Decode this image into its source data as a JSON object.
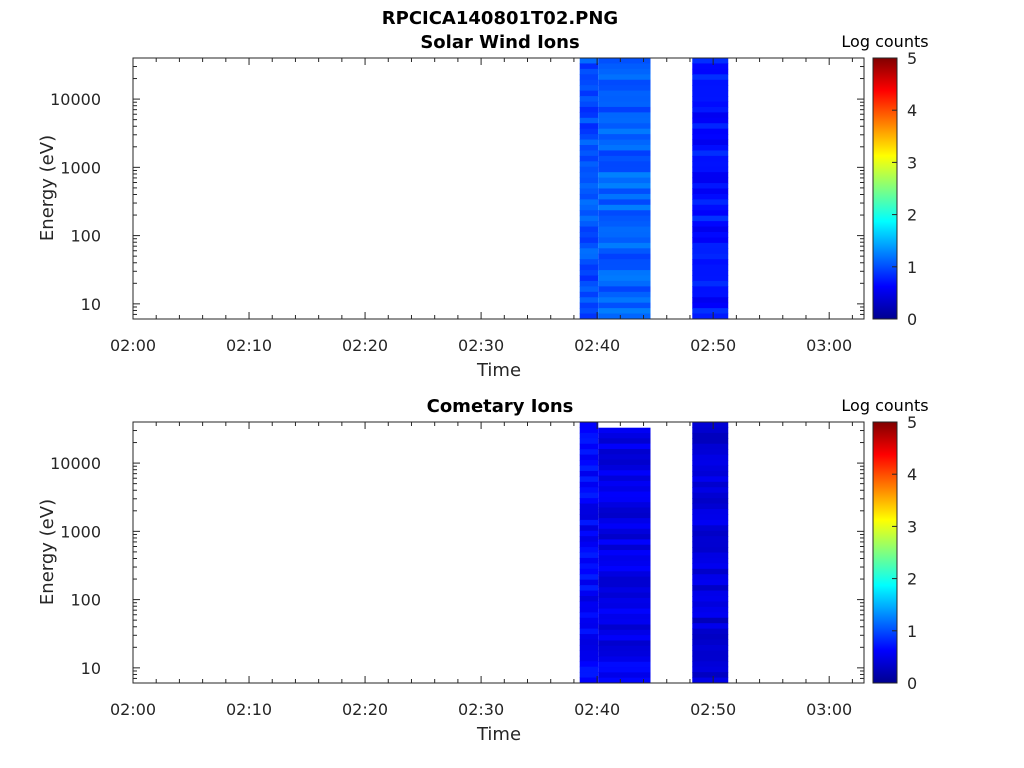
{
  "figure": {
    "title": "RPCICA140801T02.PNG"
  },
  "chart_data": [
    {
      "type": "heatmap",
      "title": "Solar Wind Ions",
      "xlabel": "Time",
      "ylabel": "Energy (eV)",
      "x_ticks": [
        "02:00",
        "02:10",
        "02:20",
        "02:30",
        "02:40",
        "02:50",
        "03:00"
      ],
      "x_range": [
        "02:00",
        "03:03"
      ],
      "y_scale": "log",
      "y_ticks": [
        "10",
        "100",
        "1000",
        "10000"
      ],
      "y_range": [
        6,
        40000
      ],
      "colorbar": {
        "label": "Log counts",
        "range": [
          0,
          5
        ],
        "ticks": [
          "0",
          "1",
          "2",
          "3",
          "4",
          "5"
        ],
        "colormap": "jet"
      },
      "data_blocks": [
        {
          "time_start": "02:38.5",
          "time_end": "02:40.1",
          "energy_min": 6,
          "energy_max": 40000,
          "log_counts": 1.0
        },
        {
          "time_start": "02:40.1",
          "time_end": "02:44.6",
          "energy_min": 6,
          "energy_max": 40000,
          "log_counts": 1.1
        },
        {
          "time_start": "02:48.2",
          "time_end": "02:51.3",
          "energy_min": 6,
          "energy_max": 40000,
          "log_counts": 0.7
        }
      ]
    },
    {
      "type": "heatmap",
      "title": "Cometary Ions",
      "xlabel": "Time",
      "ylabel": "Energy (eV)",
      "x_ticks": [
        "02:00",
        "02:10",
        "02:20",
        "02:30",
        "02:40",
        "02:50",
        "03:00"
      ],
      "x_range": [
        "02:00",
        "03:03"
      ],
      "y_scale": "log",
      "y_ticks": [
        "10",
        "100",
        "1000",
        "10000"
      ],
      "y_range": [
        6,
        40000
      ],
      "colorbar": {
        "label": "Log counts",
        "range": [
          0,
          5
        ],
        "ticks": [
          "0",
          "1",
          "2",
          "3",
          "4",
          "5"
        ],
        "colormap": "jet"
      },
      "data_blocks": [
        {
          "time_start": "02:38.5",
          "time_end": "02:40.1",
          "energy_min": 6,
          "energy_max": 40000,
          "log_counts": 0.6
        },
        {
          "time_start": "02:40.1",
          "time_end": "02:44.6",
          "energy_min": 6,
          "energy_max": 33000,
          "log_counts": 0.5
        },
        {
          "time_start": "02:48.2",
          "time_end": "02:51.3",
          "energy_min": 6,
          "energy_max": 40000,
          "log_counts": 0.4
        }
      ]
    }
  ]
}
